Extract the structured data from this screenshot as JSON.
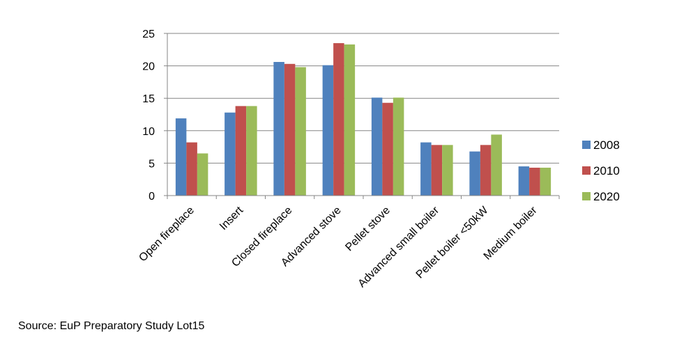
{
  "chart_data": {
    "type": "bar",
    "categories": [
      "Open fireplace",
      "Insert",
      "Closed fireplace",
      "Advanced stove",
      "Pellet stove",
      "Advanced small boiler",
      "Pellet boiler <50kW",
      "Medium boiler"
    ],
    "series": [
      {
        "name": "2008",
        "color": "#4F81BD",
        "values": [
          11.9,
          12.8,
          20.6,
          20.1,
          15.1,
          8.2,
          6.8,
          4.5
        ]
      },
      {
        "name": "2010",
        "color": "#C0504D",
        "values": [
          8.2,
          13.8,
          20.3,
          23.5,
          14.3,
          7.8,
          7.8,
          4.3
        ]
      },
      {
        "name": "2020",
        "color": "#9BBB59",
        "values": [
          6.5,
          13.8,
          19.8,
          23.3,
          15.1,
          7.8,
          9.4,
          4.3
        ]
      }
    ],
    "ylim": [
      0,
      25
    ],
    "yticks": [
      "0",
      "5",
      "10",
      "15",
      "20",
      "25"
    ],
    "grid": true,
    "legend": "right",
    "title": "",
    "xlabel": "",
    "ylabel": ""
  },
  "source_note": "Source: EuP Preparatory Study Lot15"
}
